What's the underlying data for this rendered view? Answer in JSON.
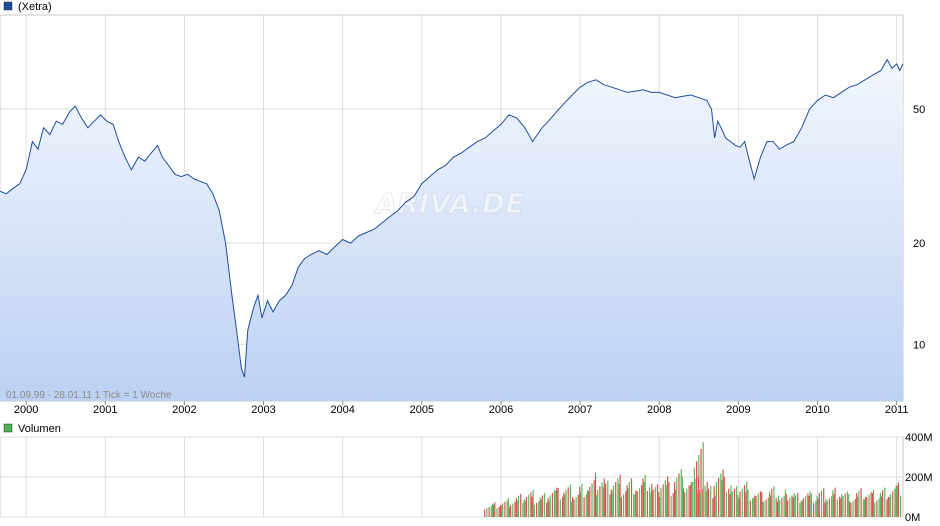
{
  "legend": {
    "price_label": "(Xetra)",
    "price_color": "#1f4e9e",
    "volume_label": "Volumen",
    "volume_color": "#4caf50"
  },
  "watermark": "ARIVA.DE",
  "range_text": "01.09.99 - 28.01.11   1 Tick = 1 Woche",
  "chart_data": [
    {
      "type": "line",
      "scale": "log",
      "x_range": [
        1999.67,
        2011.08
      ],
      "ylim": [
        6.8,
        95
      ],
      "y_ticks": [
        10,
        20,
        50
      ],
      "x_ticks": [
        "2000",
        "2001",
        "2002",
        "2003",
        "2004",
        "2005",
        "2006",
        "2007",
        "2008",
        "2009",
        "2010",
        "2011"
      ],
      "grid": true,
      "fill": "gradient",
      "series": [
        {
          "x": [
            1999.67,
            1999.75,
            1999.83,
            1999.92,
            2000.0,
            2000.08,
            2000.15,
            2000.22,
            2000.3,
            2000.38,
            2000.46,
            2000.55,
            2000.62,
            2000.7,
            2000.78,
            2000.86,
            2000.94,
            2001.02,
            2001.1,
            2001.17,
            2001.25,
            2001.33,
            2001.42,
            2001.5,
            2001.58,
            2001.66,
            2001.72,
            2001.8,
            2001.88,
            2001.96,
            2002.04,
            2002.12,
            2002.2,
            2002.28,
            2002.36,
            2002.44,
            2002.52,
            2002.6,
            2002.66,
            2002.72,
            2002.76,
            2002.8,
            2002.84,
            2002.88,
            2002.93,
            2002.98,
            2003.05,
            2003.12,
            2003.2,
            2003.28,
            2003.36,
            2003.44,
            2003.52,
            2003.6,
            2003.7,
            2003.8,
            2003.9,
            2004.0,
            2004.1,
            2004.2,
            2004.3,
            2004.4,
            2004.5,
            2004.6,
            2004.7,
            2004.8,
            2004.9,
            2005.0,
            2005.1,
            2005.2,
            2005.3,
            2005.4,
            2005.5,
            2005.6,
            2005.7,
            2005.8,
            2005.9,
            2006.0,
            2006.1,
            2006.2,
            2006.3,
            2006.35,
            2006.4,
            2006.46,
            2006.52,
            2006.6,
            2006.7,
            2006.8,
            2006.9,
            2007.0,
            2007.1,
            2007.2,
            2007.3,
            2007.4,
            2007.5,
            2007.6,
            2007.7,
            2007.8,
            2007.9,
            2008.0,
            2008.1,
            2008.2,
            2008.3,
            2008.4,
            2008.5,
            2008.6,
            2008.66,
            2008.7,
            2008.74,
            2008.78,
            2008.84,
            2008.9,
            2008.96,
            2009.02,
            2009.08,
            2009.14,
            2009.2,
            2009.28,
            2009.36,
            2009.44,
            2009.52,
            2009.6,
            2009.7,
            2009.8,
            2009.9,
            2010.0,
            2010.1,
            2010.2,
            2010.3,
            2010.4,
            2010.5,
            2010.6,
            2010.7,
            2010.8,
            2010.88,
            2010.94,
            2011.0,
            2011.04,
            2011.08
          ],
          "values": [
            28.5,
            28.0,
            29.0,
            30.0,
            33.0,
            40.0,
            38.0,
            44.0,
            42.0,
            46.0,
            45.0,
            49.0,
            51.0,
            47.0,
            44.0,
            46.0,
            48.0,
            46.0,
            45.0,
            40.0,
            36.0,
            33.0,
            36.0,
            35.0,
            37.0,
            39.0,
            36.0,
            34.0,
            32.0,
            31.5,
            32.0,
            31.0,
            30.5,
            30.0,
            28.0,
            25.0,
            20.0,
            14.0,
            11.0,
            8.5,
            8.0,
            11.0,
            12.0,
            13.0,
            14.0,
            12.0,
            13.5,
            12.5,
            13.5,
            14.0,
            15.0,
            17.0,
            18.0,
            18.5,
            19.0,
            18.5,
            19.5,
            20.5,
            20.0,
            21.0,
            21.5,
            22.0,
            23.0,
            24.0,
            25.0,
            26.5,
            27.5,
            30.0,
            31.5,
            33.0,
            34.0,
            36.0,
            37.0,
            38.5,
            40.0,
            41.0,
            43.0,
            45.0,
            48.0,
            47.0,
            44.0,
            42.0,
            40.0,
            42.0,
            44.0,
            46.0,
            49.0,
            52.0,
            55.0,
            58.0,
            60.0,
            61.0,
            59.0,
            58.0,
            57.0,
            56.0,
            56.5,
            57.0,
            56.0,
            56.0,
            55.0,
            54.0,
            54.5,
            55.0,
            54.0,
            53.0,
            50.0,
            41.0,
            46.0,
            44.0,
            41.0,
            40.0,
            39.0,
            38.5,
            40.0,
            35.0,
            31.0,
            36.0,
            40.0,
            40.0,
            38.0,
            39.0,
            40.0,
            44.0,
            50.0,
            53.0,
            55.0,
            54.0,
            56.0,
            58.0,
            59.0,
            61.0,
            63.0,
            65.0,
            70.0,
            66.0,
            68.0,
            65.0,
            68.0
          ]
        }
      ]
    },
    {
      "type": "bar",
      "ylim": [
        0,
        400
      ],
      "y_ticks": [
        "0M",
        "200M",
        "400M"
      ],
      "series": [
        {
          "name": "Volumen",
          "x": [
            2005.85,
            2005.95,
            2006.05,
            2006.15,
            2006.25,
            2006.35,
            2006.45,
            2006.55,
            2006.65,
            2006.75,
            2006.85,
            2006.95,
            2007.05,
            2007.15,
            2007.25,
            2007.35,
            2007.45,
            2007.55,
            2007.65,
            2007.75,
            2007.85,
            2007.95,
            2008.05,
            2008.15,
            2008.25,
            2008.35,
            2008.45,
            2008.5,
            2008.55,
            2008.65,
            2008.75,
            2008.85,
            2008.95,
            2009.05,
            2009.15,
            2009.25,
            2009.35,
            2009.45,
            2009.55,
            2009.65,
            2009.75,
            2009.85,
            2009.95,
            2010.05,
            2010.15,
            2010.25,
            2010.35,
            2010.45,
            2010.55,
            2010.65,
            2010.75,
            2010.85,
            2010.95,
            2011.05
          ],
          "values": [
            70,
            80,
            90,
            100,
            120,
            140,
            110,
            130,
            160,
            150,
            170,
            140,
            180,
            200,
            230,
            190,
            220,
            180,
            210,
            190,
            220,
            170,
            230,
            190,
            260,
            210,
            200,
            390,
            220,
            170,
            260,
            210,
            160,
            200,
            150,
            140,
            130,
            160,
            120,
            150,
            130,
            140,
            120,
            150,
            130,
            160,
            140,
            120,
            150,
            140,
            130,
            160,
            170,
            180
          ]
        }
      ]
    }
  ]
}
